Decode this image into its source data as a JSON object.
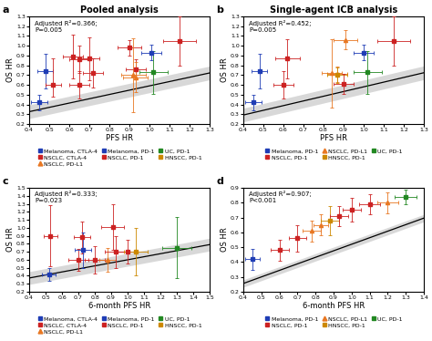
{
  "chart_data": [
    {
      "type": "scatter",
      "panel_label": "a",
      "title": "Pooled analysis",
      "xlabel": "PFS HR",
      "ylabel": "OS HR",
      "annotation": "Adjusted R²=0.366;\nP=0.005",
      "xlim": [
        0.4,
        1.3
      ],
      "ylim": [
        0.2,
        1.3
      ],
      "xticks": [
        0.4,
        0.5,
        0.6,
        0.7,
        0.8,
        0.9,
        {
          "value": 1,
          "label": "1.0"
        },
        1.1,
        1.2,
        1.3
      ],
      "yticks": [
        0.2,
        0.3,
        0.4,
        0.5,
        0.6,
        0.7,
        0.8,
        0.9,
        {
          "value": 1,
          "label": "1.0"
        },
        1.1,
        1.2,
        1.3
      ],
      "regression": {
        "x": [
          0.4,
          1.3
        ],
        "y": [
          0.326,
          0.722
        ],
        "ci_lower": [
          0.256,
          0.652
        ],
        "ci_upper": [
          0.396,
          0.792
        ]
      },
      "x": [
        0.45,
        0.48,
        0.52,
        0.62,
        0.65,
        0.65,
        0.7,
        0.72,
        0.9,
        0.93,
        0.92,
        0.93,
        1.01,
        1.02,
        1.15
      ],
      "y": [
        0.42,
        0.74,
        0.6,
        0.89,
        0.86,
        0.6,
        0.87,
        0.72,
        0.98,
        0.76,
        0.7,
        0.68,
        0.93,
        0.73,
        1.05
      ],
      "xerr_lo": [
        0.04,
        0.04,
        0.04,
        0.05,
        0.05,
        0.05,
        0.05,
        0.05,
        0.06,
        0.05,
        0.06,
        0.06,
        0.05,
        0.07,
        0.08
      ],
      "xerr_hi": [
        0.04,
        0.04,
        0.04,
        0.05,
        0.05,
        0.05,
        0.05,
        0.05,
        0.06,
        0.05,
        0.06,
        0.06,
        0.05,
        0.07,
        0.08
      ],
      "yerr_lo": [
        0.08,
        0.18,
        0.12,
        0.22,
        0.14,
        0.14,
        0.22,
        0.15,
        0.08,
        0.1,
        0.38,
        0.15,
        0.08,
        0.22,
        0.25
      ],
      "yerr_hi": [
        0.08,
        0.18,
        0.27,
        0.22,
        0.14,
        0.14,
        0.22,
        0.15,
        0.08,
        0.1,
        0.38,
        0.15,
        0.08,
        0.22,
        0.25
      ],
      "colors": [
        "#1f3db5",
        "#1f3db5",
        "#cc2222",
        "#cc2222",
        "#cc2222",
        "#cc2222",
        "#cc2222",
        "#cc2222",
        "#cc2222",
        "#cc2222",
        "#e87722",
        "#e87722",
        "#1f3db5",
        "#228822",
        "#cc2222"
      ],
      "markers": [
        "s",
        "s",
        "s",
        "s",
        "s",
        "s",
        "s",
        "s",
        "s",
        "s",
        "^",
        "^",
        "s",
        "s",
        "s"
      ],
      "legend_entries": [
        {
          "name": "Melanoma, CTLA-4",
          "color": "#1f3db5",
          "marker": "s"
        },
        {
          "name": "NSCLC, CTLA-4",
          "color": "#cc2222",
          "marker": "s"
        },
        {
          "name": "NSCLC, PD-L1",
          "color": "#e87722",
          "marker": "^"
        },
        {
          "name": "Melanoma, PD-1",
          "color": "#1f3db5",
          "marker": "s"
        },
        {
          "name": "NSCLC, PD-1",
          "color": "#cc2222",
          "marker": "s"
        },
        {
          "name": "UC, PD-1",
          "color": "#228822",
          "marker": "s"
        },
        {
          "name": "HNSCC, PD-1",
          "color": "#cc8800",
          "marker": "s"
        }
      ]
    },
    {
      "type": "scatter",
      "panel_label": "b",
      "title": "Single-agent ICB analysis",
      "xlabel": "PFS HR",
      "ylabel": "OS HR",
      "annotation": "Adjusted R²=0.452;\nP=0.005",
      "xlim": [
        0.4,
        1.3
      ],
      "ylim": [
        0.2,
        1.3
      ],
      "xticks": [
        0.4,
        0.5,
        0.6,
        0.7,
        0.8,
        0.9,
        {
          "value": 1,
          "label": "1.0"
        },
        1.1,
        1.2,
        1.3
      ],
      "yticks": [
        0.2,
        0.3,
        0.4,
        0.5,
        0.6,
        0.7,
        0.8,
        0.9,
        {
          "value": 1,
          "label": "1.0"
        },
        1.1,
        1.2,
        1.3
      ],
      "regression": {
        "x": [
          0.4,
          1.3
        ],
        "y": [
          0.292,
          0.724
        ],
        "ci_lower": [
          0.222,
          0.654
        ],
        "ci_upper": [
          0.362,
          0.794
        ]
      },
      "x": [
        0.45,
        0.48,
        0.6,
        0.62,
        0.84,
        0.87,
        0.87,
        0.9,
        0.91,
        1.0,
        1.02,
        1.15
      ],
      "y": [
        0.42,
        0.74,
        0.6,
        0.87,
        0.72,
        0.71,
        0.7,
        0.61,
        1.06,
        0.93,
        0.73,
        1.05
      ],
      "xerr_lo": [
        0.04,
        0.04,
        0.05,
        0.06,
        0.05,
        0.05,
        0.05,
        0.05,
        0.06,
        0.05,
        0.07,
        0.08
      ],
      "xerr_hi": [
        0.04,
        0.04,
        0.05,
        0.06,
        0.05,
        0.05,
        0.05,
        0.05,
        0.06,
        0.05,
        0.07,
        0.08
      ],
      "yerr_lo": [
        0.08,
        0.18,
        0.14,
        0.2,
        0.35,
        0.08,
        0.08,
        0.1,
        0.1,
        0.08,
        0.22,
        0.25
      ],
      "yerr_hi": [
        0.08,
        0.18,
        0.14,
        0.2,
        0.35,
        0.08,
        0.08,
        0.1,
        0.1,
        0.08,
        0.22,
        0.25
      ],
      "colors": [
        "#1f3db5",
        "#1f3db5",
        "#cc2222",
        "#cc2222",
        "#e87722",
        "#e87722",
        "#cc8800",
        "#cc2222",
        "#e87722",
        "#1f3db5",
        "#228822",
        "#cc2222"
      ],
      "markers": [
        "s",
        "s",
        "s",
        "s",
        "^",
        "^",
        "s",
        "s",
        "^",
        "s",
        "s",
        "s"
      ],
      "legend_entries": [
        {
          "name": "Melanoma, PD-1",
          "color": "#1f3db5",
          "marker": "s"
        },
        {
          "name": "NSCLC, PD-1",
          "color": "#cc2222",
          "marker": "s"
        },
        {
          "name": "NSCLC, PD-L1",
          "color": "#e87722",
          "marker": "^"
        },
        {
          "name": "HNSCC, PD-1",
          "color": "#cc8800",
          "marker": "s"
        },
        {
          "name": "UC, PD-1",
          "color": "#228822",
          "marker": "s"
        }
      ]
    },
    {
      "type": "scatter",
      "panel_label": "c",
      "xlabel": "6-month PFS HR",
      "ylabel": "OS HR",
      "annotation": "Adjusted R²=0.333;\nP=0.023",
      "xlim": [
        0.4,
        1.5
      ],
      "ylim": [
        0.2,
        1.5
      ],
      "xticks": [
        0.4,
        0.5,
        0.6,
        0.7,
        0.8,
        0.9,
        {
          "value": 1,
          "label": "1.0"
        },
        1.1,
        1.2,
        1.3,
        1.4,
        1.5
      ],
      "yticks": [
        0.2,
        0.3,
        0.4,
        0.5,
        0.6,
        0.7,
        0.8,
        0.9,
        {
          "value": 1,
          "label": "1.0"
        },
        1.1,
        1.2,
        1.3,
        1.4,
        1.5
      ],
      "regression": {
        "x": [
          0.4,
          1.5
        ],
        "y": [
          0.372,
          0.79
        ],
        "ci_lower": [
          0.292,
          0.71
        ],
        "ci_upper": [
          0.452,
          0.87
        ]
      },
      "x": [
        0.52,
        0.53,
        0.7,
        0.72,
        0.73,
        0.8,
        0.88,
        0.91,
        0.93,
        1.0,
        1.05,
        1.3
      ],
      "y": [
        0.42,
        0.9,
        0.6,
        0.88,
        0.72,
        0.6,
        0.6,
        1.01,
        0.7,
        0.7,
        0.7,
        0.75
      ],
      "xerr_lo": [
        0.04,
        0.04,
        0.06,
        0.05,
        0.05,
        0.06,
        0.05,
        0.07,
        0.07,
        0.06,
        0.07,
        0.09
      ],
      "xerr_hi": [
        0.04,
        0.04,
        0.06,
        0.05,
        0.05,
        0.06,
        0.05,
        0.07,
        0.07,
        0.06,
        0.07,
        0.09
      ],
      "yerr_lo": [
        0.08,
        0.38,
        0.14,
        0.2,
        0.22,
        0.17,
        0.15,
        0.28,
        0.2,
        0.15,
        0.3,
        0.38
      ],
      "yerr_hi": [
        0.08,
        0.38,
        0.14,
        0.2,
        0.22,
        0.17,
        0.15,
        0.28,
        0.2,
        0.15,
        0.3,
        0.38
      ],
      "colors": [
        "#1f3db5",
        "#cc2222",
        "#cc2222",
        "#cc2222",
        "#1f3db5",
        "#cc2222",
        "#e87722",
        "#cc2222",
        "#cc2222",
        "#cc2222",
        "#cc8800",
        "#228822"
      ],
      "markers": [
        "s",
        "s",
        "s",
        "s",
        "s",
        "s",
        "^",
        "s",
        "s",
        "s",
        "s",
        "s"
      ],
      "legend_entries": [
        {
          "name": "Melanoma, CTLA-4",
          "color": "#1f3db5",
          "marker": "s"
        },
        {
          "name": "NSCLC, CTLA-4",
          "color": "#cc2222",
          "marker": "s"
        },
        {
          "name": "NSCLC, PD-L1",
          "color": "#e87722",
          "marker": "^"
        },
        {
          "name": "Melanoma, PD-1",
          "color": "#1f3db5",
          "marker": "s"
        },
        {
          "name": "NSCLC, PD-1",
          "color": "#cc2222",
          "marker": "s"
        },
        {
          "name": "UC, PD-1",
          "color": "#228822",
          "marker": "s"
        },
        {
          "name": "HNSCC, PD-1",
          "color": "#cc8800",
          "marker": "s"
        }
      ]
    },
    {
      "type": "scatter",
      "panel_label": "d",
      "xlabel": "6-month PFS HR",
      "ylabel": "OS HR",
      "annotation": "Adjusted R²=0.907;\nP<0.001",
      "xlim": [
        0.4,
        1.4
      ],
      "ylim": [
        0.2,
        0.9
      ],
      "xticks": [
        0.4,
        0.5,
        0.6,
        0.7,
        0.8,
        0.9,
        {
          "value": 1,
          "label": "1.0"
        },
        1.1,
        1.2,
        1.3,
        1.4
      ],
      "yticks": [
        0.2,
        0.3,
        0.4,
        0.5,
        0.6,
        0.7,
        0.8,
        0.9
      ],
      "regression": {
        "x": [
          0.4,
          1.4
        ],
        "y": [
          0.256,
          0.696
        ],
        "ci_lower": [
          0.231,
          0.671
        ],
        "ci_upper": [
          0.281,
          0.721
        ]
      },
      "x": [
        0.45,
        0.6,
        0.7,
        0.78,
        0.83,
        0.88,
        0.93,
        1.0,
        1.1,
        1.2,
        1.3
      ],
      "y": [
        0.42,
        0.48,
        0.56,
        0.61,
        0.65,
        0.68,
        0.71,
        0.75,
        0.79,
        0.8,
        0.84
      ],
      "xerr_lo": [
        0.04,
        0.05,
        0.05,
        0.05,
        0.04,
        0.05,
        0.05,
        0.05,
        0.06,
        0.06,
        0.06
      ],
      "xerr_hi": [
        0.04,
        0.05,
        0.05,
        0.05,
        0.04,
        0.05,
        0.05,
        0.05,
        0.06,
        0.06,
        0.06
      ],
      "yerr_lo": [
        0.07,
        0.07,
        0.09,
        0.07,
        0.07,
        0.1,
        0.07,
        0.08,
        0.07,
        0.07,
        0.05
      ],
      "yerr_hi": [
        0.07,
        0.07,
        0.09,
        0.07,
        0.07,
        0.1,
        0.07,
        0.08,
        0.07,
        0.07,
        0.05
      ],
      "colors": [
        "#1f3db5",
        "#cc2222",
        "#cc2222",
        "#e87722",
        "#e87722",
        "#cc8800",
        "#cc2222",
        "#cc2222",
        "#cc2222",
        "#e87722",
        "#228822"
      ],
      "markers": [
        "s",
        "s",
        "s",
        "^",
        "^",
        "s",
        "s",
        "s",
        "s",
        "^",
        "s"
      ],
      "legend_entries": [
        {
          "name": "Melanoma, PD-1",
          "color": "#1f3db5",
          "marker": "s"
        },
        {
          "name": "NSCLC, PD-1",
          "color": "#cc2222",
          "marker": "s"
        },
        {
          "name": "NSCLC, PD-L1",
          "color": "#e87722",
          "marker": "^"
        },
        {
          "name": "HNSCC, PD-1",
          "color": "#cc8800",
          "marker": "s"
        },
        {
          "name": "UC, PD-1",
          "color": "#228822",
          "marker": "s"
        }
      ]
    }
  ]
}
